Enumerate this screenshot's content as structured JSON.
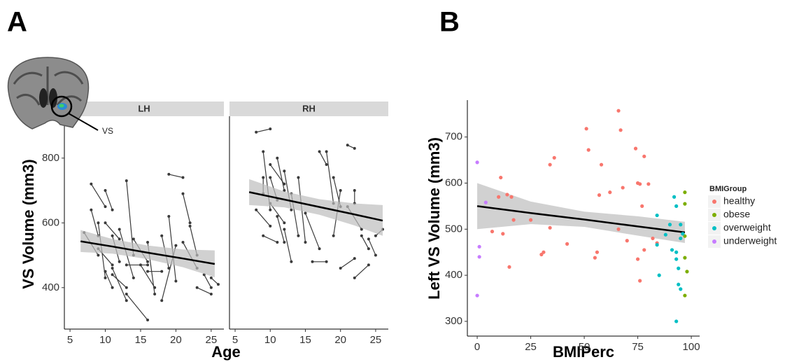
{
  "chart_data": [
    {
      "type": "line",
      "panel": "A",
      "facet": "LH",
      "y_label": "VS Volume (mm3)",
      "x_label": "Age",
      "annotation": "VS",
      "xlim": [
        4.2,
        26.8
      ],
      "xticks": [
        5,
        10,
        15,
        20,
        25
      ],
      "ylim": [
        272,
        925
      ],
      "yticks": [
        400,
        600,
        800
      ],
      "line_color": "#3a3a3a",
      "fit_color": "#000000",
      "ribbon_color": "#bdbdbd",
      "series": [
        {
          "x": [
            7,
            9
          ],
          "values": [
            570,
            500
          ]
        },
        {
          "x": [
            8,
            10
          ],
          "values": [
            720,
            650
          ]
        },
        {
          "x": [
            8,
            9
          ],
          "values": [
            640,
            560
          ]
        },
        {
          "x": [
            9,
            10
          ],
          "values": [
            600,
            430
          ]
        },
        {
          "x": [
            9,
            11
          ],
          "values": [
            520,
            470
          ]
        },
        {
          "x": [
            10,
            11
          ],
          "values": [
            700,
            640
          ]
        },
        {
          "x": [
            10,
            11
          ],
          "values": [
            450,
            400
          ]
        },
        {
          "x": [
            10,
            12
          ],
          "values": [
            600,
            550
          ]
        },
        {
          "x": [
            11,
            13
          ],
          "values": [
            440,
            400
          ]
        },
        {
          "x": [
            11,
            12
          ],
          "values": [
            560,
            480
          ]
        },
        {
          "x": [
            11,
            13
          ],
          "values": [
            460,
            360
          ]
        },
        {
          "x": [
            12,
            14
          ],
          "values": [
            580,
            430
          ]
        },
        {
          "x": [
            13,
            14
          ],
          "values": [
            730,
            500
          ]
        },
        {
          "x": [
            13,
            16
          ],
          "values": [
            470,
            470
          ]
        },
        {
          "x": [
            13,
            16
          ],
          "values": [
            380,
            300
          ]
        },
        {
          "x": [
            14,
            16
          ],
          "values": [
            550,
            480
          ]
        },
        {
          "x": [
            15,
            17
          ],
          "values": [
            470,
            400
          ]
        },
        {
          "x": [
            16,
            18
          ],
          "values": [
            450,
            450
          ]
        },
        {
          "x": [
            16,
            17
          ],
          "values": [
            540,
            380
          ]
        },
        {
          "x": [
            18,
            20
          ],
          "values": [
            360,
            530
          ]
        },
        {
          "x": [
            18,
            19
          ],
          "values": [
            560,
            460
          ]
        },
        {
          "x": [
            19,
            20
          ],
          "values": [
            620,
            420
          ]
        },
        {
          "x": [
            19,
            21
          ],
          "values": [
            750,
            740
          ]
        },
        {
          "x": [
            21,
            22
          ],
          "values": [
            690,
            600
          ]
        },
        {
          "x": [
            21,
            23
          ],
          "values": [
            540,
            460
          ]
        },
        {
          "x": [
            22,
            23
          ],
          "values": [
            590,
            500
          ]
        },
        {
          "x": [
            23,
            25
          ],
          "values": [
            400,
            380
          ]
        },
        {
          "x": [
            24,
            25
          ],
          "values": [
            440,
            400
          ]
        },
        {
          "x": [
            25,
            26
          ],
          "values": [
            430,
            410
          ]
        }
      ],
      "fit": {
        "x": [
          6.5,
          11,
          16,
          21,
          25.5
        ],
        "values": [
          543,
          527,
          508,
          490,
          473
        ],
        "lower": [
          510,
          505,
          488,
          463,
          432
        ],
        "upper": [
          578,
          550,
          530,
          518,
          515
        ]
      }
    },
    {
      "type": "line",
      "facet": "RH",
      "xlim": [
        4.2,
        26.8
      ],
      "xticks": [
        5,
        10,
        15,
        20,
        25
      ],
      "ylim": [
        272,
        925
      ],
      "line_color": "#3a3a3a",
      "fit_color": "#000000",
      "ribbon_color": "#bdbdbd",
      "series": [
        {
          "x": [
            8,
            10
          ],
          "values": [
            880,
            890
          ]
        },
        {
          "x": [
            8,
            10
          ],
          "values": [
            640,
            590
          ]
        },
        {
          "x": [
            9,
            9
          ],
          "values": [
            740,
            690
          ]
        },
        {
          "x": [
            9,
            10
          ],
          "values": [
            820,
            640
          ]
        },
        {
          "x": [
            9,
            11
          ],
          "values": [
            560,
            540
          ]
        },
        {
          "x": [
            10,
            12
          ],
          "values": [
            780,
            720
          ]
        },
        {
          "x": [
            10,
            12
          ],
          "values": [
            660,
            600
          ]
        },
        {
          "x": [
            10,
            11
          ],
          "values": [
            740,
            670
          ]
        },
        {
          "x": [
            11,
            12
          ],
          "values": [
            620,
            540
          ]
        },
        {
          "x": [
            11,
            12
          ],
          "values": [
            800,
            700
          ]
        },
        {
          "x": [
            12,
            13
          ],
          "values": [
            580,
            480
          ]
        },
        {
          "x": [
            12,
            13
          ],
          "values": [
            760,
            640
          ]
        },
        {
          "x": [
            13,
            14
          ],
          "values": [
            690,
            560
          ]
        },
        {
          "x": [
            14,
            15
          ],
          "values": [
            740,
            540
          ]
        },
        {
          "x": [
            15,
            17
          ],
          "values": [
            630,
            520
          ]
        },
        {
          "x": [
            16,
            18
          ],
          "values": [
            480,
            480
          ]
        },
        {
          "x": [
            17,
            18
          ],
          "values": [
            820,
            780
          ]
        },
        {
          "x": [
            18,
            19
          ],
          "values": [
            820,
            660
          ]
        },
        {
          "x": [
            19,
            20
          ],
          "values": [
            560,
            700
          ]
        },
        {
          "x": [
            19,
            20
          ],
          "values": [
            740,
            650
          ]
        },
        {
          "x": [
            20,
            22
          ],
          "values": [
            460,
            490
          ]
        },
        {
          "x": [
            21,
            22
          ],
          "values": [
            840,
            830
          ]
        },
        {
          "x": [
            21,
            23
          ],
          "values": [
            650,
            580
          ]
        },
        {
          "x": [
            22,
            22
          ],
          "values": [
            660,
            700
          ]
        },
        {
          "x": [
            22,
            24
          ],
          "values": [
            430,
            470
          ]
        },
        {
          "x": [
            23,
            24
          ],
          "values": [
            560,
            520
          ]
        },
        {
          "x": [
            24,
            25
          ],
          "values": [
            550,
            500
          ]
        },
        {
          "x": [
            25,
            26
          ],
          "values": [
            560,
            580
          ]
        }
      ],
      "fit": {
        "x": [
          7,
          12,
          17,
          22,
          26
        ],
        "values": [
          695,
          672,
          649,
          626,
          607
        ],
        "lower": [
          655,
          648,
          625,
          592,
          560
        ],
        "upper": [
          735,
          697,
          673,
          660,
          655
        ]
      }
    },
    {
      "type": "scatter",
      "panel": "B",
      "y_label": "Left VS Volume (mm3)",
      "x_label": "BMIPerc",
      "legend_title": "BMIGroup",
      "xlim": [
        -4.6,
        103.9
      ],
      "xticks": [
        0,
        25,
        50,
        75,
        100
      ],
      "ylim": [
        268,
        777
      ],
      "yticks": [
        300,
        400,
        500,
        600,
        700
      ],
      "fit_color": "#000000",
      "ribbon_color": "#bdbdbd",
      "series": [
        {
          "name": "healthy",
          "color": "#f8766d",
          "x": [
            7,
            10,
            11,
            12,
            14,
            15,
            16,
            17,
            25,
            30,
            31,
            34,
            34,
            36,
            42,
            51,
            52,
            55,
            56,
            57,
            58,
            62,
            66,
            66,
            67,
            68,
            70,
            74,
            75,
            75,
            76,
            76,
            77,
            78,
            78,
            80,
            82,
            84
          ],
          "values": [
            495,
            570,
            612,
            490,
            575,
            418,
            570,
            520,
            520,
            445,
            450,
            503,
            640,
            655,
            468,
            718,
            672,
            438,
            450,
            574,
            640,
            580,
            757,
            500,
            715,
            590,
            475,
            675,
            600,
            435,
            598,
            388,
            550,
            455,
            658,
            598,
            480,
            470
          ]
        },
        {
          "name": "obese",
          "color": "#7cae00",
          "x": [
            97,
            97,
            97,
            97,
            98,
            97
          ],
          "values": [
            580,
            555,
            438,
            485,
            408,
            356
          ]
        },
        {
          "name": "overweight",
          "color": "#00bfc4",
          "x": [
            84,
            84,
            85,
            88,
            90,
            91,
            92,
            93,
            93,
            93,
            93,
            94,
            94,
            95,
            95,
            95,
            96
          ],
          "values": [
            530,
            466,
            400,
            488,
            510,
            455,
            570,
            300,
            450,
            550,
            435,
            380,
            415,
            510,
            370,
            480,
            490
          ]
        },
        {
          "name": "underweight",
          "color": "#c77cff",
          "x": [
            0,
            1,
            1,
            0,
            4
          ],
          "values": [
            645,
            462,
            440,
            356,
            558
          ]
        }
      ],
      "fit": {
        "x": [
          0,
          25,
          50,
          75,
          97
        ],
        "values": [
          550,
          535,
          521,
          506,
          493
        ],
        "lower": [
          500,
          511,
          505,
          486,
          470
        ],
        "upper": [
          600,
          560,
          538,
          528,
          516
        ]
      }
    }
  ]
}
